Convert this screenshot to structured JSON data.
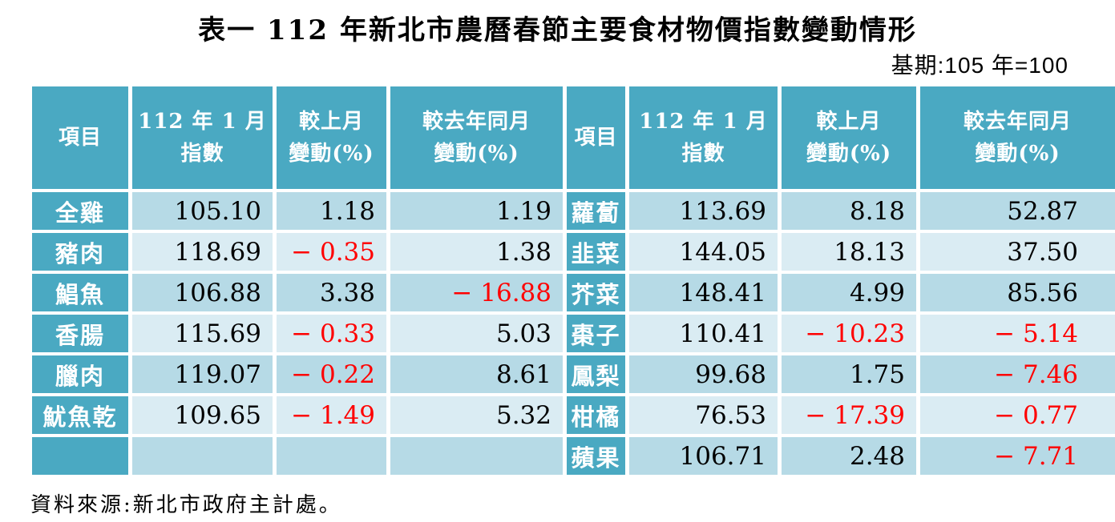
{
  "title": "表一  112 年新北市農曆春節主要食材物價指數變動情形",
  "base_period": "基期:105 年=100",
  "source": "資料來源:新北市政府主計處。",
  "colors": {
    "header_teal": "#4AA9C2",
    "row_dark_blue": "#B6DAE6",
    "row_light_blue": "#DAECF3",
    "negative_red": "#FF0000",
    "grid_white": "#FFFFFF",
    "text_black": "#000000",
    "header_text_white": "#FFFFFF"
  },
  "table": {
    "headers": {
      "item": "項目",
      "index_line1": "112 年 1 月",
      "index_line2": "指數",
      "mom_line1": "較上月",
      "mom_line2": "變動(%)",
      "yoy_line1": "較去年同月",
      "yoy_line2": "變動(%)"
    },
    "left_rows": [
      {
        "item": "全雞",
        "index": "105.10",
        "mom": "1.18",
        "yoy": "1.19"
      },
      {
        "item": "豬肉",
        "index": "118.69",
        "mom": "− 0.35",
        "yoy": "1.38"
      },
      {
        "item": "鯧魚",
        "index": "106.88",
        "mom": "3.38",
        "yoy": "− 16.88"
      },
      {
        "item": "香腸",
        "index": "115.69",
        "mom": "− 0.33",
        "yoy": "5.03"
      },
      {
        "item": "臘肉",
        "index": "119.07",
        "mom": "− 0.22",
        "yoy": "8.61"
      },
      {
        "item": "魷魚乾",
        "index": "109.65",
        "mom": "− 1.49",
        "yoy": "5.32"
      },
      {
        "item": "",
        "index": "",
        "mom": "",
        "yoy": ""
      }
    ],
    "right_rows": [
      {
        "item": "蘿蔔",
        "index": "113.69",
        "mom": "8.18",
        "yoy": "52.87"
      },
      {
        "item": "韭菜",
        "index": "144.05",
        "mom": "18.13",
        "yoy": "37.50"
      },
      {
        "item": "芥菜",
        "index": "148.41",
        "mom": "4.99",
        "yoy": "85.56"
      },
      {
        "item": "棗子",
        "index": "110.41",
        "mom": "− 10.23",
        "yoy": "− 5.14"
      },
      {
        "item": "鳳梨",
        "index": "99.68",
        "mom": "1.75",
        "yoy": "− 7.46"
      },
      {
        "item": "柑橘",
        "index": "76.53",
        "mom": "− 17.39",
        "yoy": "− 0.77"
      },
      {
        "item": "蘋果",
        "index": "106.71",
        "mom": "2.48",
        "yoy": "− 7.71"
      }
    ]
  }
}
